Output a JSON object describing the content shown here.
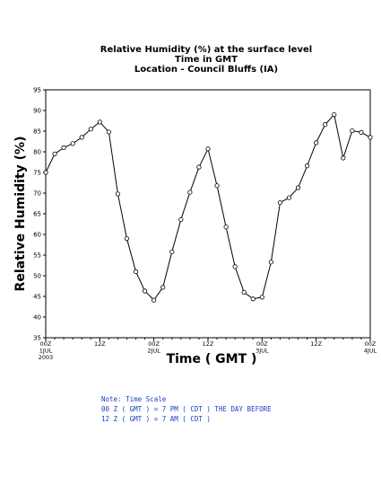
{
  "chart_data": {
    "type": "line",
    "title_lines": [
      "Relative Humidity (%) at the surface level",
      "Time in GMT",
      "Location - Council Bluffs (IA)"
    ],
    "xlabel": "Time ( GMT )",
    "ylabel": "Relative Humidity (%)",
    "ylim": [
      35,
      95
    ],
    "yticks": [
      35,
      40,
      45,
      50,
      55,
      60,
      65,
      70,
      75,
      80,
      85,
      90,
      95
    ],
    "x_hours_range": [
      0,
      72
    ],
    "x_ticks": [
      {
        "hour": 0,
        "lines": [
          "00Z",
          "1JUL",
          "2003"
        ]
      },
      {
        "hour": 12,
        "lines": [
          "12Z"
        ]
      },
      {
        "hour": 24,
        "lines": [
          "00Z",
          "2JUL"
        ]
      },
      {
        "hour": 36,
        "lines": [
          "12Z"
        ]
      },
      {
        "hour": 48,
        "lines": [
          "00Z",
          "3JUL"
        ]
      },
      {
        "hour": 60,
        "lines": [
          "12Z"
        ]
      },
      {
        "hour": 72,
        "lines": [
          "00Z",
          "4JUL"
        ]
      }
    ],
    "series": [
      {
        "x": [
          0,
          2,
          4,
          6,
          8,
          10,
          12,
          14,
          16,
          18,
          20,
          22,
          24,
          26,
          28,
          30,
          32,
          34,
          36,
          38,
          40,
          42,
          44,
          46,
          48,
          50,
          52,
          54,
          56,
          58,
          60,
          62,
          64,
          66,
          68,
          70,
          72
        ],
        "values": [
          75,
          79.5,
          81,
          82,
          83.5,
          85.5,
          87.2,
          84.8,
          69.8,
          59,
          51,
          46.3,
          44.1,
          47.2,
          55.8,
          63.6,
          70.2,
          76.3,
          80.7,
          71.8,
          61.8,
          52.2,
          46,
          44.4,
          44.8,
          53.3,
          67.7,
          68.9,
          71.3,
          76.6,
          82.2,
          86.6,
          89,
          78.5,
          85.1,
          84.7,
          83.5
        ]
      }
    ],
    "grid": false,
    "line_color": "#000000",
    "marker": "open-circle"
  },
  "notes": [
    "Note: Time Scale",
    "00 Z ( GMT ) = 7 PM ( CDT ) THE DAY BEFORE",
    "12 Z ( GMT ) = 7 AM ( CDT )"
  ],
  "colors": {
    "note_text": "#1a3fc8"
  }
}
